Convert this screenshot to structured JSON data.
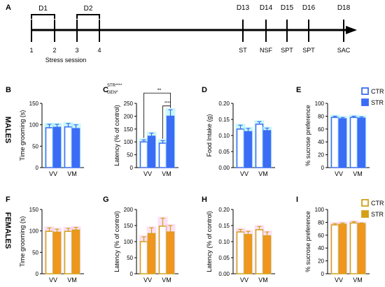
{
  "timeline": {
    "panel_letter": "A",
    "periods": [
      {
        "label": "D1",
        "from": 0,
        "to": 1
      },
      {
        "label": "D2",
        "from": 2,
        "to": 3
      }
    ],
    "ticks": [
      {
        "top": "",
        "bottom": "1"
      },
      {
        "top": "",
        "bottom": "2"
      },
      {
        "top": "",
        "bottom": "3"
      },
      {
        "top": "",
        "bottom": "4"
      },
      {
        "top": "D13",
        "bottom": "ST"
      },
      {
        "top": "D14",
        "bottom": "NSF"
      },
      {
        "top": "D15",
        "bottom": "SPT"
      },
      {
        "top": "D16",
        "bottom": "SPT"
      },
      {
        "top": "D18",
        "bottom": "SAC"
      }
    ],
    "session_label": "Stress session"
  },
  "row_labels": {
    "males": "MALES",
    "females": "FEMALES"
  },
  "legends": {
    "males": {
      "items": [
        {
          "label": "CTR",
          "style": "open"
        },
        {
          "label": "STR",
          "style": "filled"
        }
      ],
      "color": "#3b6cf6"
    },
    "females": {
      "items": [
        {
          "label": "CTR",
          "style": "open"
        },
        {
          "label": "STR",
          "style": "filled"
        }
      ],
      "color": "#d4a017"
    }
  },
  "colors": {
    "male_accent": "#3b6cf6",
    "male_halo": "#9ff0f0",
    "female_accent": "#d4a017",
    "female_fill": "#f2951f",
    "female_halo": "#f7c6ee",
    "female_ctr_fill": "#ffffff"
  },
  "chart_data": [
    {
      "panel": "B",
      "type": "bar",
      "group": "males",
      "categories": [
        "VV",
        "VM"
      ],
      "ylabel": "Time grooming (s)",
      "ylim": [
        0,
        150
      ],
      "yticks": [
        0,
        50,
        100,
        150
      ],
      "series": [
        {
          "name": "CTR",
          "values": [
            93,
            95
          ],
          "errors": [
            8,
            8
          ]
        },
        {
          "name": "STR",
          "values": [
            94,
            91
          ],
          "errors": [
            7,
            9
          ]
        }
      ],
      "annotations": []
    },
    {
      "panel": "C",
      "type": "bar",
      "group": "males",
      "categories": [
        "VV",
        "VM"
      ],
      "ylabel": "Latency (% of control)",
      "ylim": [
        0,
        250
      ],
      "yticks": [
        0,
        50,
        100,
        150,
        200,
        250
      ],
      "series": [
        {
          "name": "CTR",
          "values": [
            100,
            95
          ],
          "errors": [
            8,
            10
          ]
        },
        {
          "name": "STR",
          "values": [
            122,
            200
          ],
          "errors": [
            12,
            25
          ]
        }
      ],
      "annotations": [
        "STR****",
        "GEN*",
        "**",
        "****"
      ]
    },
    {
      "panel": "D",
      "type": "bar",
      "group": "males",
      "categories": [
        "VV",
        "VM"
      ],
      "ylabel": "Food Intake  (g)",
      "ylim": [
        0,
        0.2
      ],
      "yticks": [
        "0.00",
        "0.05",
        "0.10",
        "0.15",
        "0.20"
      ],
      "series": [
        {
          "name": "CTR",
          "values": [
            0.12,
            0.135
          ],
          "errors": [
            0.012,
            0.008
          ]
        },
        {
          "name": "STR",
          "values": [
            0.112,
            0.115
          ],
          "errors": [
            0.01,
            0.008
          ]
        }
      ],
      "annotations": []
    },
    {
      "panel": "E",
      "type": "bar",
      "group": "males",
      "categories": [
        "VV",
        "VM"
      ],
      "ylabel": "% sucrose preference",
      "ylim": [
        0,
        100
      ],
      "yticks": [
        0,
        20,
        40,
        60,
        80,
        100
      ],
      "series": [
        {
          "name": "CTR",
          "values": [
            78,
            78
          ],
          "errors": [
            2,
            2
          ]
        },
        {
          "name": "STR",
          "values": [
            76,
            77
          ],
          "errors": [
            2,
            2
          ]
        }
      ],
      "annotations": []
    },
    {
      "panel": "F",
      "type": "bar",
      "group": "females",
      "categories": [
        "VV",
        "VM"
      ],
      "ylabel": "Time grooming (s)",
      "ylim": [
        0,
        150
      ],
      "yticks": [
        0,
        50,
        100,
        150
      ],
      "series": [
        {
          "name": "CTR",
          "values": [
            99,
            99
          ],
          "errors": [
            8,
            7
          ]
        },
        {
          "name": "STR",
          "values": [
            97,
            102
          ],
          "errors": [
            7,
            6
          ]
        }
      ],
      "annotations": []
    },
    {
      "panel": "G",
      "type": "bar",
      "group": "females",
      "categories": [
        "VV",
        "VM"
      ],
      "ylabel": "Latency (% of control)",
      "ylim": [
        0,
        200
      ],
      "yticks": [
        0,
        50,
        100,
        150,
        200
      ],
      "series": [
        {
          "name": "CTR",
          "values": [
            100,
            148
          ],
          "errors": [
            15,
            25
          ]
        },
        {
          "name": "STR",
          "values": [
            125,
            130
          ],
          "errors": [
            18,
            20
          ]
        }
      ],
      "annotations": []
    },
    {
      "panel": "H",
      "type": "bar",
      "group": "females",
      "categories": [
        "VV",
        "VM"
      ],
      "ylabel": "Latency (% of control)",
      "ylim": [
        0,
        0.2
      ],
      "yticks": [
        "0.00",
        "0.05",
        "0.10",
        "0.15",
        "0.20"
      ],
      "series": [
        {
          "name": "CTR",
          "values": [
            0.13,
            0.137
          ],
          "errors": [
            0.008,
            0.01
          ]
        },
        {
          "name": "STR",
          "values": [
            0.122,
            0.118
          ],
          "errors": [
            0.01,
            0.012
          ]
        }
      ],
      "annotations": []
    },
    {
      "panel": "I",
      "type": "bar",
      "group": "females",
      "categories": [
        "VV",
        "VM"
      ],
      "ylabel": "% sucrose preference",
      "ylim": [
        0,
        100
      ],
      "yticks": [
        0,
        20,
        40,
        60,
        80,
        100
      ],
      "series": [
        {
          "name": "CTR",
          "values": [
            76,
            79
          ],
          "errors": [
            2,
            2
          ]
        },
        {
          "name": "STR",
          "values": [
            77,
            78
          ],
          "errors": [
            2,
            1
          ]
        }
      ],
      "annotations": []
    }
  ]
}
